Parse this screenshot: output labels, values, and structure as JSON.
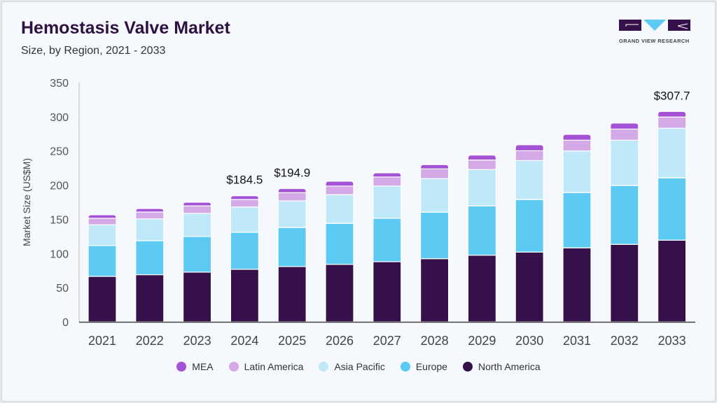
{
  "header": {
    "title": "Hemostasis Valve Market",
    "subtitle": "Size, by Region, 2021 - 2033"
  },
  "logo": {
    "text": "GRAND VIEW RESEARCH"
  },
  "chart_data": {
    "type": "bar",
    "stacked": true,
    "title": "Hemostasis Valve Market",
    "subtitle": "Size, by Region, 2021 - 2033",
    "xlabel": "",
    "ylabel": "Market Size (US$M)",
    "ylim": [
      0,
      350
    ],
    "yticks": [
      0,
      50,
      100,
      150,
      200,
      250,
      300,
      350
    ],
    "categories": [
      "2021",
      "2022",
      "2023",
      "2024",
      "2025",
      "2026",
      "2027",
      "2028",
      "2029",
      "2030",
      "2031",
      "2032",
      "2033"
    ],
    "series": [
      {
        "name": "North America",
        "color": "#36104a",
        "values": [
          66.5,
          69.0,
          72.7,
          76.8,
          80.9,
          84.0,
          88.0,
          92.4,
          97.5,
          102.0,
          108.2,
          113.3,
          119.4
        ]
      },
      {
        "name": "Europe",
        "color": "#5ccaf3",
        "values": [
          45.1,
          49.7,
          52.2,
          54.2,
          57.1,
          60.0,
          63.5,
          67.9,
          72.0,
          76.8,
          80.8,
          86.1,
          91.1
        ]
      },
      {
        "name": "Asia Pacific",
        "color": "#bfe9f9",
        "values": [
          30.4,
          31.8,
          33.7,
          37.0,
          39.0,
          42.0,
          47.1,
          49.2,
          53.3,
          57.2,
          61.0,
          66.3,
          72.7
        ]
      },
      {
        "name": "Latin America",
        "color": "#d3a9e8",
        "values": [
          9.5,
          10.2,
          11.1,
          11.0,
          12.0,
          12.6,
          13.3,
          14.3,
          13.9,
          14.3,
          15.7,
          16.3,
          16.4
        ]
      },
      {
        "name": "MEA",
        "color": "#a452d6",
        "values": [
          5.1,
          5.1,
          5.3,
          5.5,
          5.9,
          7.1,
          6.1,
          6.2,
          7.2,
          8.7,
          8.6,
          8.7,
          8.1
        ]
      }
    ],
    "annotations": [
      {
        "category": "2024",
        "label": "$184.5"
      },
      {
        "category": "2025",
        "label": "$194.9"
      },
      {
        "category": "2033",
        "label": "$307.7"
      }
    ],
    "legend": {
      "placement": "bottom",
      "order": [
        "MEA",
        "Latin America",
        "Asia Pacific",
        "Europe",
        "North America"
      ]
    },
    "grid": false
  }
}
